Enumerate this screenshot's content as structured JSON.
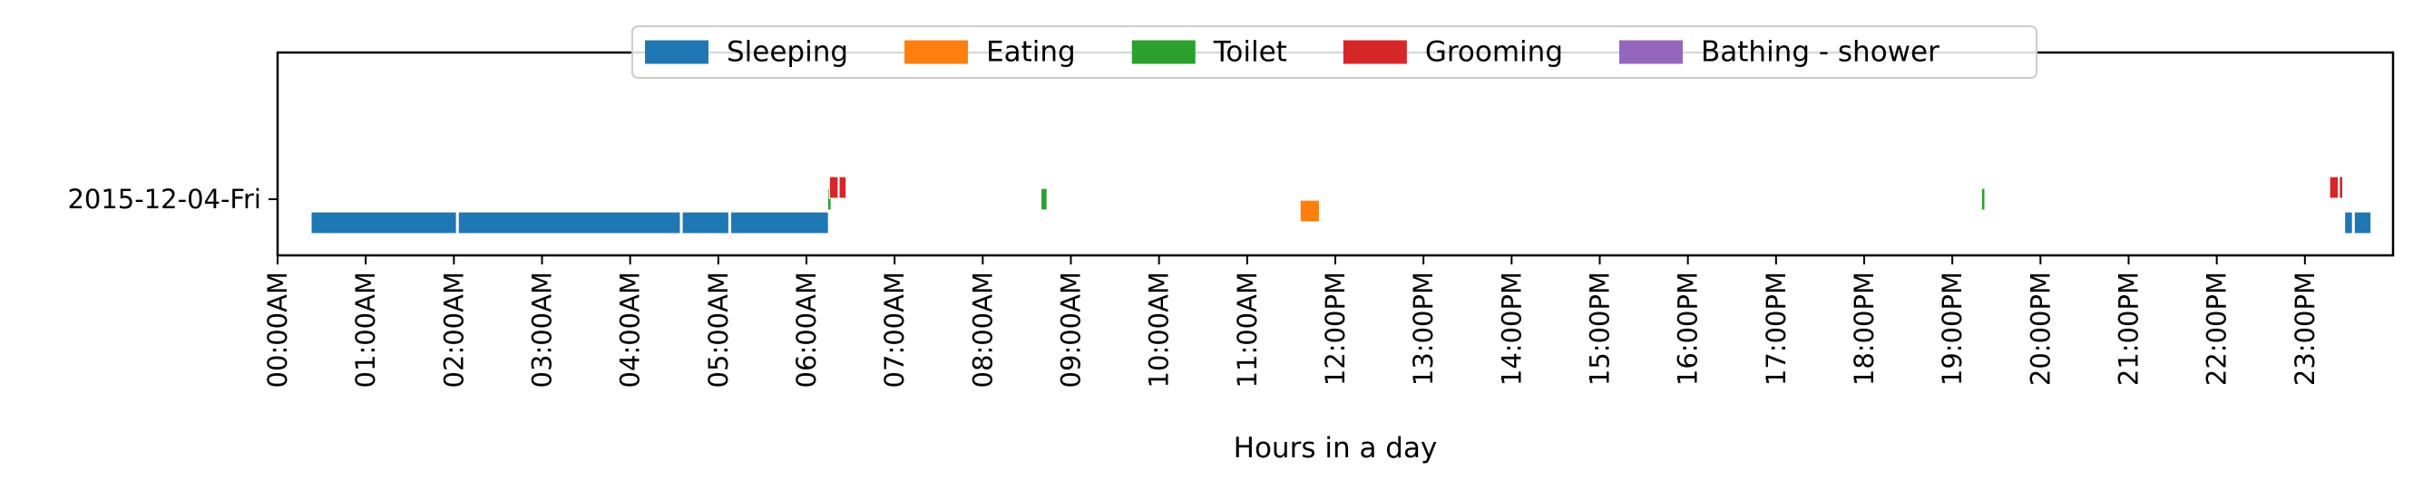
{
  "chart_data": {
    "type": "timeline",
    "xlabel": "Hours in a day",
    "xlim_hours": [
      0,
      24
    ],
    "x_tick_labels": [
      "00:00AM",
      "01:00AM",
      "02:00AM",
      "03:00AM",
      "04:00AM",
      "05:00AM",
      "06:00AM",
      "07:00AM",
      "08:00AM",
      "09:00AM",
      "10:00AM",
      "11:00AM",
      "12:00PM",
      "13:00PM",
      "14:00PM",
      "15:00PM",
      "16:00PM",
      "17:00PM",
      "18:00PM",
      "19:00PM",
      "20:00PM",
      "21:00PM",
      "22:00PM",
      "23:00PM"
    ],
    "y_categories": [
      "2015-12-04-Fri"
    ],
    "legend_position": "top-center",
    "grid": false,
    "activities": [
      {
        "name": "Sleeping",
        "color": "#1f77b4",
        "lane": 0
      },
      {
        "name": "Eating",
        "color": "#ff7f0e",
        "lane": 1
      },
      {
        "name": "Toilet",
        "color": "#2ca02c",
        "lane": 2
      },
      {
        "name": "Grooming",
        "color": "#d62728",
        "lane": 3
      },
      {
        "name": "Bathing - shower",
        "color": "#9467bd",
        "lane": 4
      }
    ],
    "events": [
      {
        "activity": "Sleeping",
        "start": 0.38,
        "end": 2.03
      },
      {
        "activity": "Sleeping",
        "start": 2.05,
        "end": 4.57
      },
      {
        "activity": "Sleeping",
        "start": 4.59,
        "end": 5.12
      },
      {
        "activity": "Sleeping",
        "start": 5.14,
        "end": 6.25
      },
      {
        "activity": "Toilet",
        "start": 6.24,
        "end": 6.28
      },
      {
        "activity": "Grooming",
        "start": 6.26,
        "end": 6.36
      },
      {
        "activity": "Grooming",
        "start": 6.37,
        "end": 6.45
      },
      {
        "activity": "Toilet",
        "start": 8.66,
        "end": 8.73
      },
      {
        "activity": "Eating",
        "start": 11.6,
        "end": 11.82
      },
      {
        "activity": "Toilet",
        "start": 19.33,
        "end": 19.37
      },
      {
        "activity": "Grooming",
        "start": 23.28,
        "end": 23.38
      },
      {
        "activity": "Grooming",
        "start": 23.39,
        "end": 23.43
      },
      {
        "activity": "Sleeping",
        "start": 23.45,
        "end": 23.54
      },
      {
        "activity": "Sleeping",
        "start": 23.56,
        "end": 23.75
      }
    ]
  }
}
